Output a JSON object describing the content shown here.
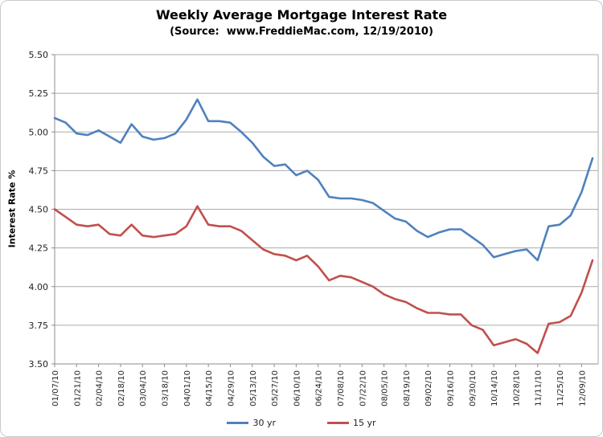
{
  "header": {
    "title": "Weekly Average Mortgage Interest Rate",
    "subtitle": "(Source:  www.FreddieMac.com, 12/19/2010)"
  },
  "chart_data": {
    "type": "line",
    "title": "Weekly Average Mortgage Interest Rate",
    "subtitle": "(Source:  www.FreddieMac.com, 12/19/2010)",
    "xlabel": "",
    "ylabel": "Interest Rate %",
    "ylim": [
      3.5,
      5.5
    ],
    "ytick_step": 0.25,
    "grid": true,
    "legend_position": "bottom",
    "x_label_every": 2,
    "x": [
      "01/07/10",
      "01/14/10",
      "01/21/10",
      "01/28/10",
      "02/04/10",
      "02/11/10",
      "02/18/10",
      "02/25/10",
      "03/04/10",
      "03/11/10",
      "03/18/10",
      "03/25/10",
      "04/01/10",
      "04/08/10",
      "04/15/10",
      "04/22/10",
      "04/29/10",
      "05/06/10",
      "05/13/10",
      "05/20/10",
      "05/27/10",
      "06/03/10",
      "06/10/10",
      "06/17/10",
      "06/24/10",
      "07/01/10",
      "07/08/10",
      "07/15/10",
      "07/22/10",
      "07/29/10",
      "08/05/10",
      "08/12/10",
      "08/19/10",
      "08/26/10",
      "09/02/10",
      "09/09/10",
      "09/16/10",
      "09/23/10",
      "09/30/10",
      "10/07/10",
      "10/14/10",
      "10/21/10",
      "10/28/10",
      "11/04/10",
      "11/11/10",
      "11/18/10",
      "11/25/10",
      "12/02/10",
      "12/09/10",
      "12/16/10"
    ],
    "series": [
      {
        "name": "30 yr",
        "color": "#4F81BD",
        "values": [
          5.09,
          5.06,
          4.99,
          4.98,
          5.01,
          4.97,
          4.93,
          5.05,
          4.97,
          4.95,
          4.96,
          4.99,
          5.08,
          5.21,
          5.07,
          5.07,
          5.06,
          5.0,
          4.93,
          4.84,
          4.78,
          4.79,
          4.72,
          4.75,
          4.69,
          4.58,
          4.57,
          4.57,
          4.56,
          4.54,
          4.49,
          4.44,
          4.42,
          4.36,
          4.32,
          4.35,
          4.37,
          4.37,
          4.32,
          4.27,
          4.19,
          4.21,
          4.23,
          4.24,
          4.17,
          4.39,
          4.4,
          4.46,
          4.61,
          4.83
        ]
      },
      {
        "name": "15 yr",
        "color": "#C0504D",
        "values": [
          4.5,
          4.45,
          4.4,
          4.39,
          4.4,
          4.34,
          4.33,
          4.4,
          4.33,
          4.32,
          4.33,
          4.34,
          4.39,
          4.52,
          4.4,
          4.39,
          4.39,
          4.36,
          4.3,
          4.24,
          4.21,
          4.2,
          4.17,
          4.2,
          4.13,
          4.04,
          4.07,
          4.06,
          4.03,
          4.0,
          3.95,
          3.92,
          3.9,
          3.86,
          3.83,
          3.83,
          3.82,
          3.82,
          3.75,
          3.72,
          3.62,
          3.64,
          3.66,
          3.63,
          3.57,
          3.76,
          3.77,
          3.81,
          3.96,
          4.17
        ]
      }
    ],
    "axis_text_color": "#1f1f1f"
  }
}
